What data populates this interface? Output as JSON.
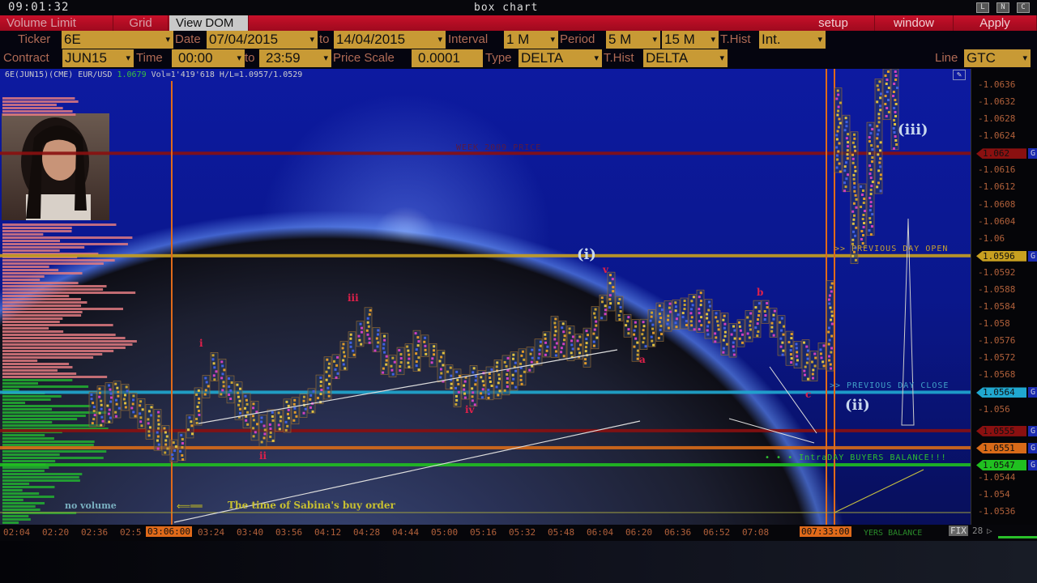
{
  "titlebar": {
    "clock": "09:01:32",
    "title": "box chart",
    "buttons": [
      "L",
      "N",
      "C"
    ]
  },
  "menubar": {
    "left": [
      "Volume Limit",
      "Grid",
      "View DOM"
    ],
    "active": "View DOM",
    "right": [
      "setup",
      "window",
      "Apply"
    ]
  },
  "toolbar1": {
    "ticker_label": "Ticker",
    "ticker": "6E",
    "date_label": "Date",
    "date_from": "07/04/2015",
    "to_label": "to",
    "date_to": "14/04/2015",
    "interval_label": "Interval",
    "interval": "1 M",
    "period_label": "Period",
    "period1": "5 M",
    "period2": "15 M",
    "thist_label": "T.Hist",
    "thist": "Int."
  },
  "toolbar2": {
    "contract_label": "Contract",
    "contract": "JUN15",
    "time_label": "Time",
    "time_from": "00:00",
    "to_label": "to",
    "time_to": "23:59",
    "price_scale_label": "Price Scale",
    "price_scale": "0.0001",
    "type_label": "Type",
    "type": "DELTA",
    "thist_label": "T.Hist",
    "thist": "DELTA",
    "line_label": "Line",
    "line": "GTC"
  },
  "info": {
    "symbol": "6E(JUN15)(CME) EUR/USD",
    "last": "1.0679",
    "stats": "Vol=1'419'618 H/L=1.0957/1.0529"
  },
  "price_axis": {
    "ticks": [
      "1.0636",
      "1.0632",
      "1.0628",
      "1.0624",
      "1.0616",
      "1.0612",
      "1.0608",
      "1.0604",
      "1.06",
      "1.0592",
      "1.0588",
      "1.0584",
      "1.058",
      "1.0576",
      "1.0572",
      "1.0568",
      "1.056",
      "1.0544",
      "1.054",
      "1.0536"
    ],
    "levels": [
      {
        "price": "1.062",
        "color": "#8a1010"
      },
      {
        "price": "1.0596",
        "color": "#c8a020"
      },
      {
        "price": "1.0564",
        "color": "#20a8d0"
      },
      {
        "price": "1.0555",
        "color": "#8a1010"
      },
      {
        "price": "1.0551",
        "color": "#d86a18"
      },
      {
        "price": "1.0547",
        "color": "#20c020"
      }
    ],
    "g_label": "G"
  },
  "time_axis": {
    "labels": [
      "02:04",
      "02:20",
      "02:36",
      "02:5",
      "03:24",
      "03:40",
      "03:56",
      "04:12",
      "04:28",
      "04:44",
      "05:00",
      "05:16",
      "05:32",
      "05:48",
      "06:04",
      "06:20",
      "06:36",
      "06:52",
      "07:08"
    ],
    "highlight1": "03:06:00",
    "highlight2": "007:33:00",
    "fix": "FIX",
    "num": "28"
  },
  "annotations": {
    "week_price": "WEEK 2009 PRICE",
    "prev_open": ">> PREVIOUS DAY OPEN",
    "prev_close": ">> PREVIOUS DAY CLOSE",
    "buyers": "• • • IntraDAY BUYERS BALANCE!!!",
    "buyers_axis": "YERS BALANCE",
    "no_volume": "no volume",
    "buy_order": "The time of Sabina's buy order",
    "waves": {
      "w1": "(i)",
      "w2": "(ii)",
      "w3": "(iii)",
      "s1": "i",
      "s2": "ii",
      "s3": "iii",
      "s4": "iv",
      "s5": "v",
      "a": "a",
      "b": "b",
      "c": "c"
    }
  },
  "chart_data": {
    "type": "box",
    "price_path": [
      [
        "02:34",
        1.056
      ],
      [
        "02:47",
        1.0563
      ],
      [
        "03:01",
        1.0555
      ],
      [
        "03:09",
        1.0549
      ],
      [
        "03:24",
        1.057
      ],
      [
        "03:34",
        1.0562
      ],
      [
        "03:44",
        1.0555
      ],
      [
        "04:04",
        1.0562
      ],
      [
        "04:14",
        1.057
      ],
      [
        "04:27",
        1.058
      ],
      [
        "04:37",
        1.057
      ],
      [
        "04:51",
        1.0575
      ],
      [
        "05:04",
        1.0565
      ],
      [
        "05:17",
        1.0566
      ],
      [
        "05:31",
        1.057
      ],
      [
        "05:44",
        1.0577
      ],
      [
        "05:57",
        1.0574
      ],
      [
        "06:07",
        1.0588
      ],
      [
        "06:17",
        1.0576
      ],
      [
        "06:31",
        1.0582
      ],
      [
        "06:44",
        1.0583
      ],
      [
        "06:57",
        1.0576
      ],
      [
        "07:11",
        1.0583
      ],
      [
        "07:21",
        1.0574
      ],
      [
        "07:31",
        1.057
      ],
      [
        "07:37",
        1.0575
      ],
      [
        "07:41",
        1.063
      ],
      [
        "07:47",
        1.061
      ],
      [
        "07:51",
        1.0605
      ],
      [
        "07:56",
        1.062
      ],
      [
        "08:01",
        1.0635
      ],
      [
        "08:06",
        1.0632
      ]
    ]
  }
}
